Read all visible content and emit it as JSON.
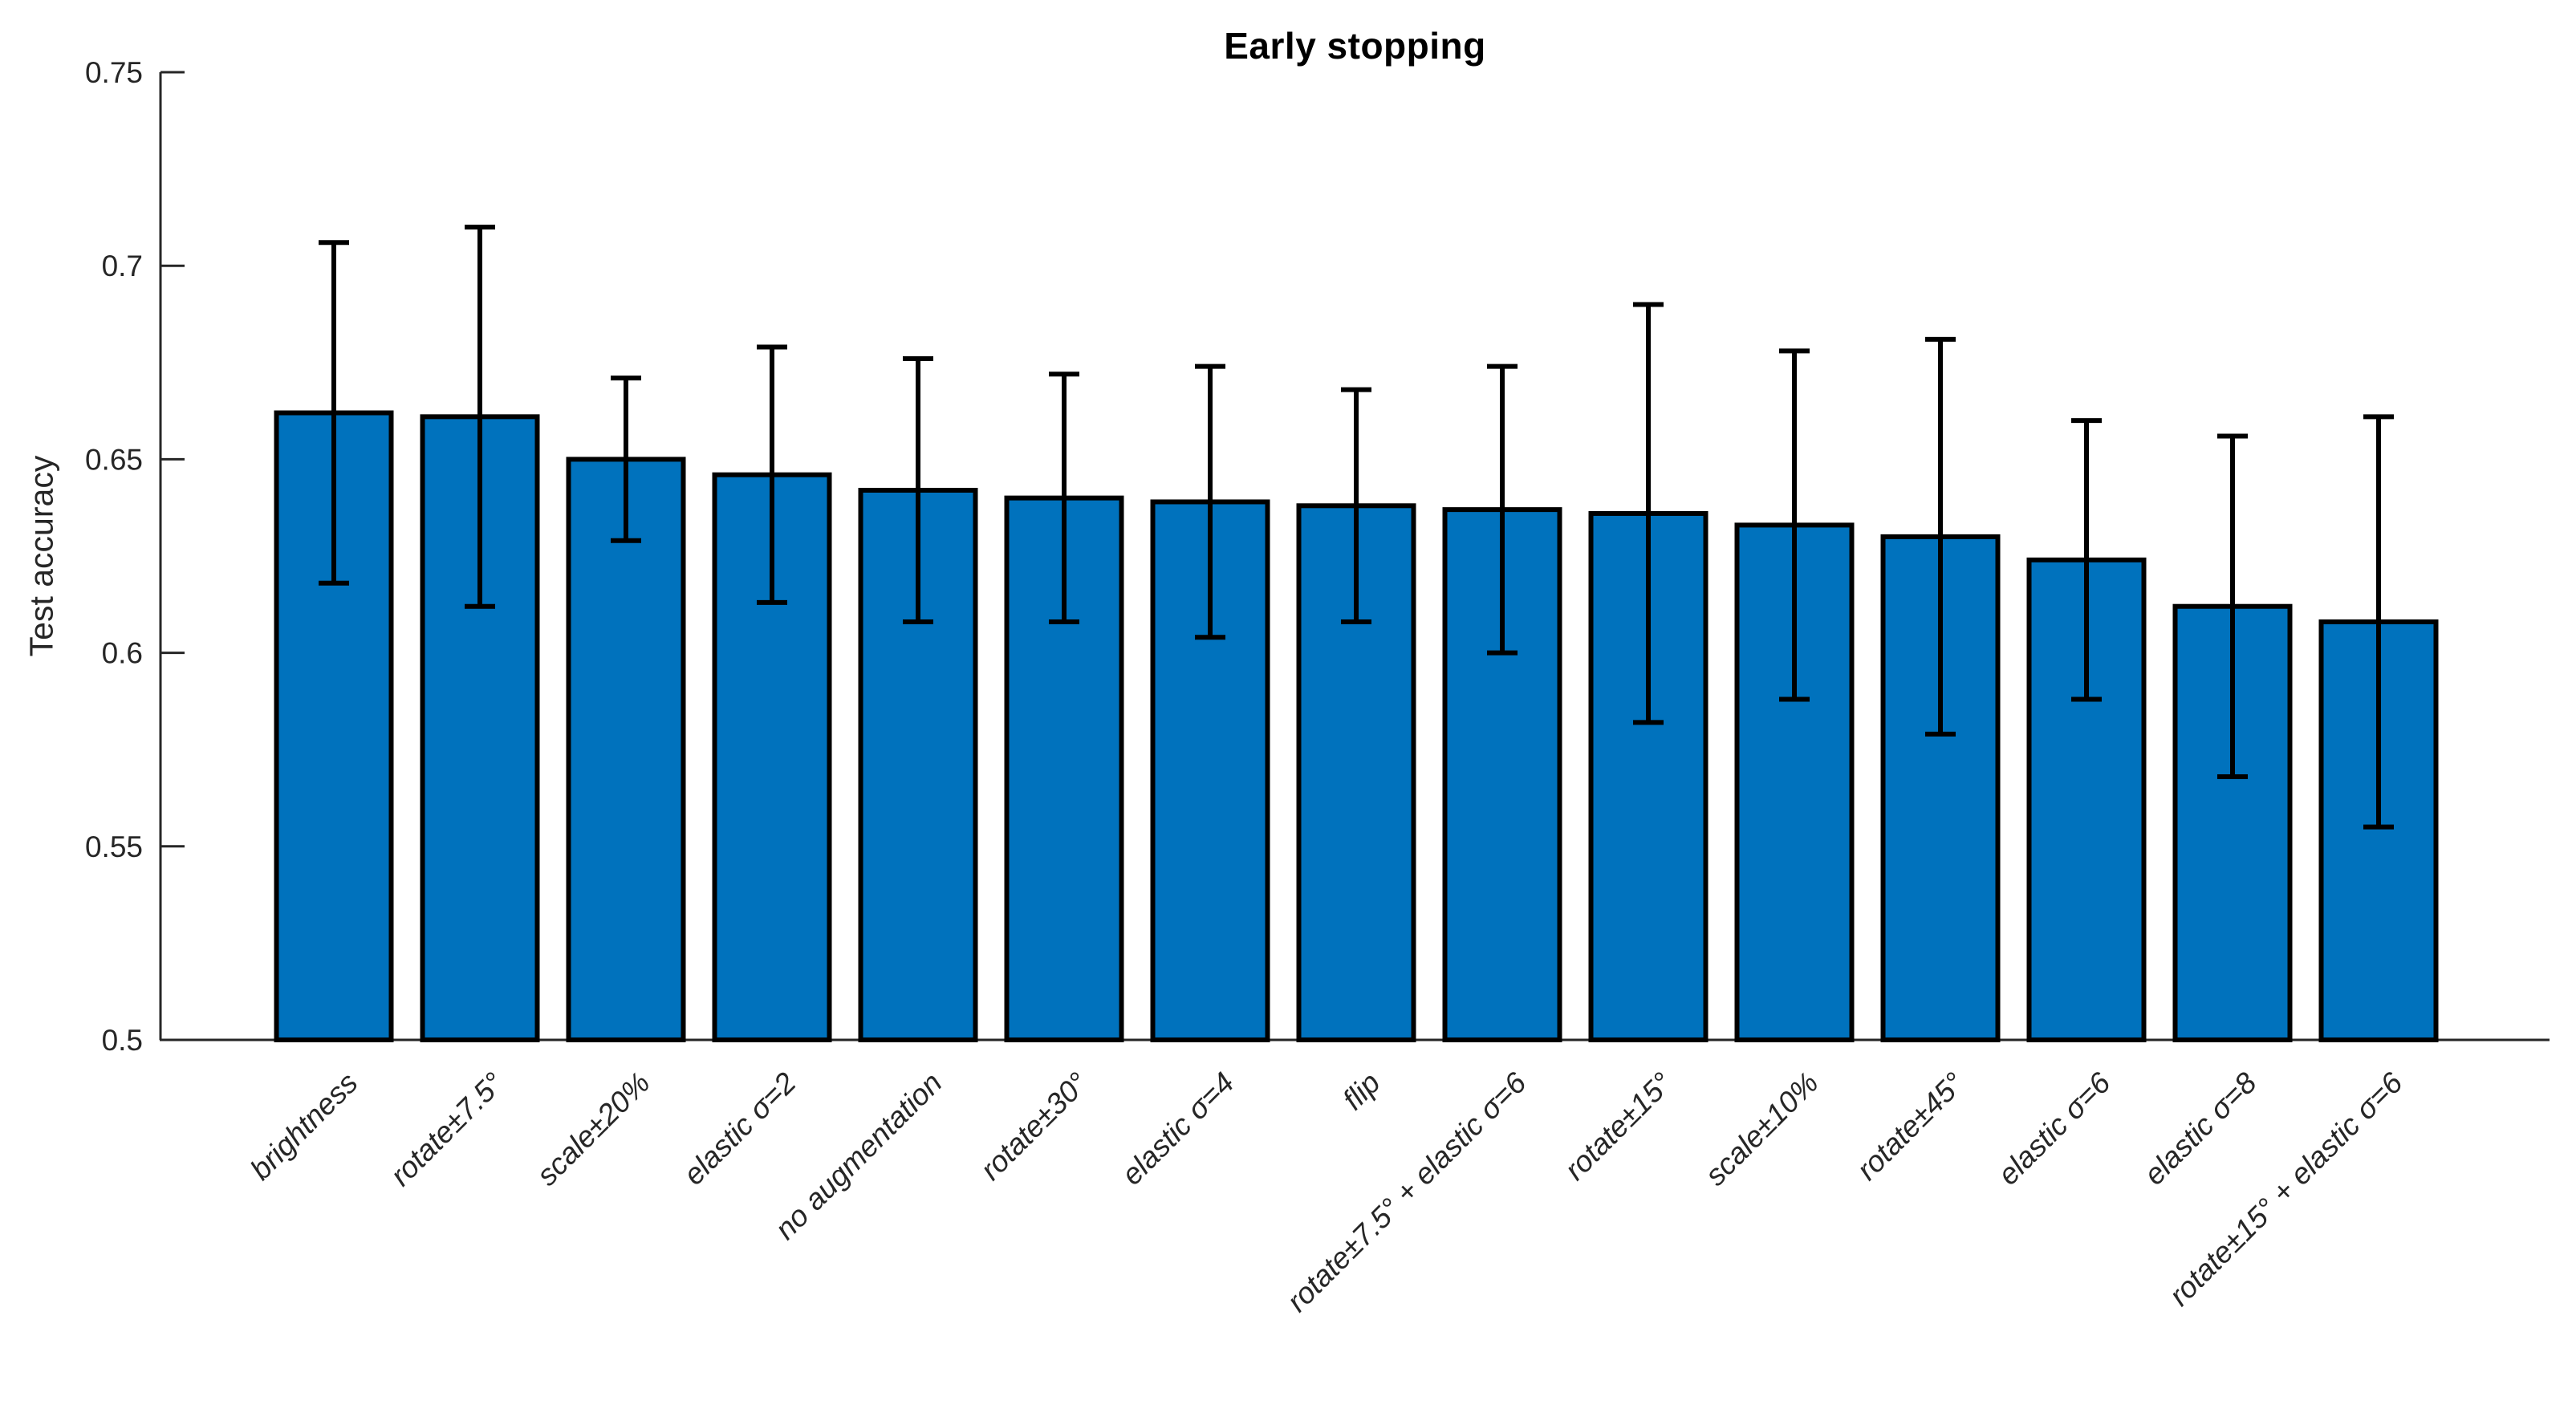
{
  "figure": {
    "title": "Early stopping",
    "background_color": "#FFFFFF"
  },
  "chart_data": {
    "type": "bar",
    "title": "Early stopping",
    "xlabel": "",
    "ylabel": "Test accuracy",
    "categories": [
      "brightness",
      "rotate±7.5°",
      "scale±20%",
      "elastic σ=2",
      "no augmentation",
      "rotate±30°",
      "elastic σ=4",
      "flip",
      "rotate±7.5° + elastic σ=6",
      "rotate±15°",
      "scale±10%",
      "rotate±45°",
      "elastic σ=6",
      "elastic σ=8",
      "rotate±15° + elastic σ=6"
    ],
    "values": [
      0.662,
      0.661,
      0.65,
      0.646,
      0.642,
      0.64,
      0.639,
      0.638,
      0.637,
      0.636,
      0.633,
      0.63,
      0.624,
      0.612,
      0.608
    ],
    "errors": [
      0.044,
      0.049,
      0.021,
      0.033,
      0.034,
      0.032,
      0.035,
      0.03,
      0.037,
      0.054,
      0.045,
      0.051,
      0.036,
      0.044,
      0.053
    ],
    "ylim": [
      0.5,
      0.75
    ],
    "yticks": [
      0.5,
      0.55,
      0.6,
      0.65,
      0.7,
      0.75
    ],
    "ytick_labels": [
      "0.5",
      "0.55",
      "0.6",
      "0.65",
      "0.7",
      "0.75"
    ],
    "grid": false,
    "legend": null,
    "bar_color": "#0072BD",
    "bar_edge_color": "#000000",
    "error_bar_color": "#000000",
    "axis_color": "#262626",
    "title_color": "#000000",
    "x_tick_rotation_deg": 45,
    "x_tick_font_style": "italic"
  }
}
